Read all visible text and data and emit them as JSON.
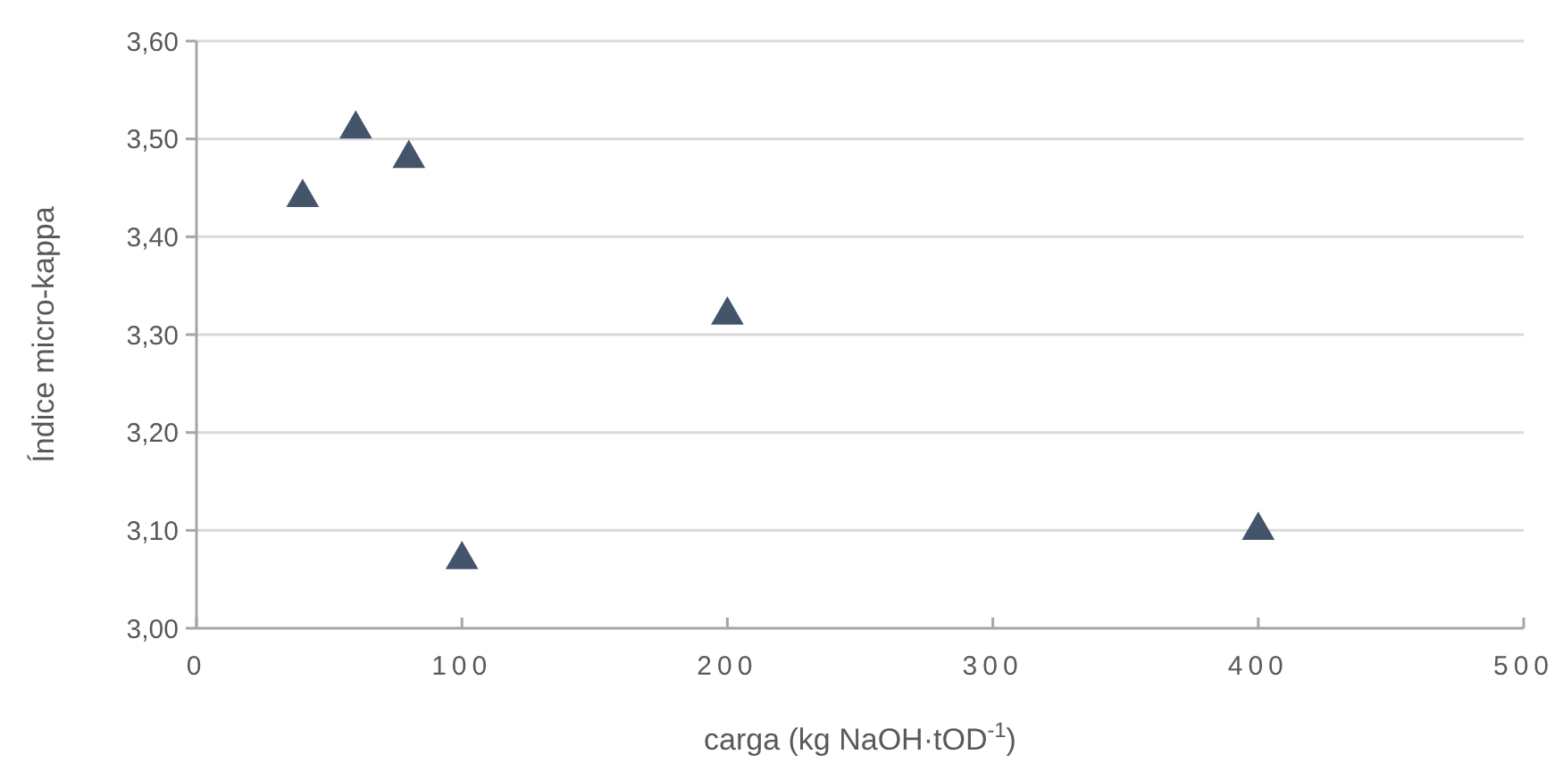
{
  "chart_data": {
    "type": "scatter",
    "xlabel": "carga (kg NaOH·tOD$^{-1}$)",
    "ylabel": "Índice micro-kappa",
    "x": [
      40,
      60,
      80,
      100,
      200,
      400
    ],
    "series": [
      {
        "color": "#44546a",
        "values": [
          3.44,
          3.51,
          3.48,
          3.07,
          3.32,
          3.1
        ]
      }
    ],
    "xlim": [
      0,
      500
    ],
    "xticks": [
      0,
      100,
      200,
      300,
      400,
      500
    ],
    "ylim": [
      3.0,
      3.6
    ],
    "yticks": [
      {
        "value": 3.0,
        "label": "3,00"
      },
      {
        "value": 3.1,
        "label": "3,10"
      },
      {
        "value": 3.2,
        "label": "3,20"
      },
      {
        "value": 3.3,
        "label": "3,30"
      },
      {
        "value": 3.4,
        "label": "3,40"
      },
      {
        "value": 3.5,
        "label": "3,50"
      },
      {
        "value": 3.6,
        "label": "3,60"
      }
    ],
    "grid": "y",
    "marker": "triangle"
  }
}
